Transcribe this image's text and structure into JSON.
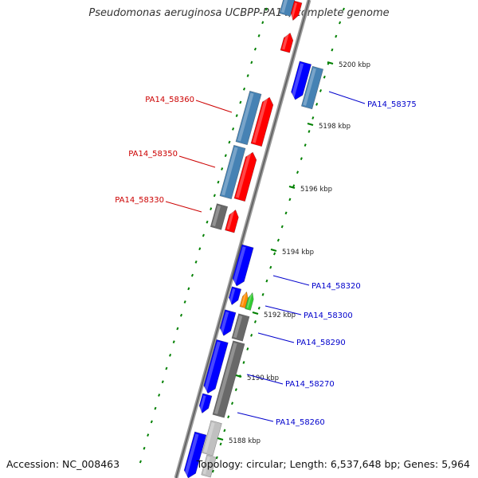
{
  "title": "Pseudomonas aeruginosa UCBPP-PA14, complete genome",
  "footer": {
    "accession": "Accession: NC_008463",
    "summary": "Topology: circular; Length: 6,537,648 bp; Genes: 5,964"
  },
  "colors": {
    "forward_cds": "#ff0000",
    "reverse_cds": "#0000ff",
    "gene_blue": "#4682b4",
    "gene_gray": "#696969",
    "gene_light": "#c0c0c0",
    "orange": "#ff8c00",
    "green": "#32cd32",
    "ticks": "#008000",
    "backbone": "#808080"
  },
  "ticks": [
    {
      "label": "5200 kbp",
      "kbp": 5200
    },
    {
      "label": "5198 kbp",
      "kbp": 5198
    },
    {
      "label": "5196 kbp",
      "kbp": 5196
    },
    {
      "label": "5194 kbp",
      "kbp": 5194
    },
    {
      "label": "5192 kbp",
      "kbp": 5192
    },
    {
      "label": "5190 kbp",
      "kbp": 5190
    },
    {
      "label": "5188 kbp",
      "kbp": 5188
    }
  ],
  "labels": [
    {
      "text": "PA14_58360",
      "color": "#cc0000"
    },
    {
      "text": "PA14_58350",
      "color": "#cc0000"
    },
    {
      "text": "PA14_58330",
      "color": "#cc0000"
    },
    {
      "text": "PA14_58375",
      "color": "#0000cc"
    },
    {
      "text": "PA14_58320",
      "color": "#0000cc"
    },
    {
      "text": "PA14_58300",
      "color": "#0000cc"
    },
    {
      "text": "PA14_58290",
      "color": "#0000cc"
    },
    {
      "text": "PA14_58270",
      "color": "#0000cc"
    },
    {
      "text": "PA14_58260",
      "color": "#0000cc"
    }
  ]
}
